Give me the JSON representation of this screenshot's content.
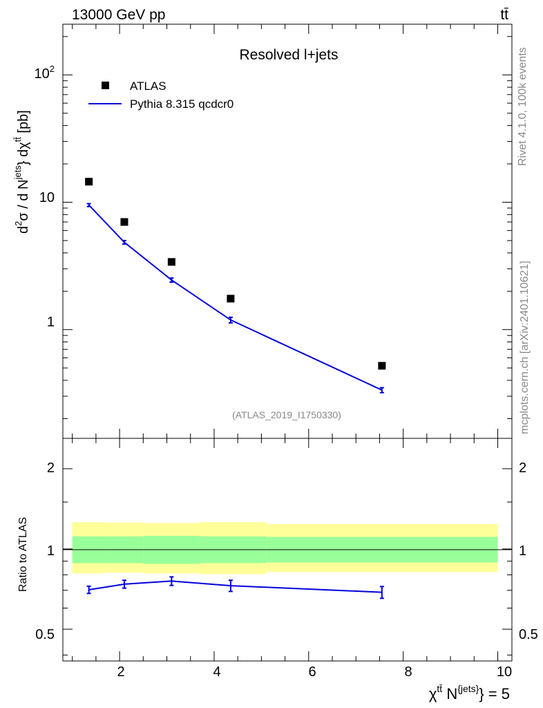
{
  "header": {
    "energy": "13000 GeV pp",
    "process": "tt̄",
    "analysis": "(ATLAS_2019_I1750330)",
    "side_rivet": "Rivet 4.1.0,  100k events",
    "side_source": "mcplots.cern.ch [arXiv:2401.10621]"
  },
  "chart_data": {
    "type": "line",
    "title": "Resolved l+jets",
    "xlabel": "χ^{tt̄} N^{jets} = 5",
    "ylabel": "d²σ / d N^{jets} d χ^{tt̄} [pb]",
    "ratio_ylabel": "Ratio to ATLAS",
    "xlim": [
      0.8,
      10.3
    ],
    "ylim": [
      0.14,
      250
    ],
    "ratio_ylim": [
      0.38,
      2.6
    ],
    "x_ticks": [
      "2",
      "4",
      "6",
      "8",
      "10"
    ],
    "y_ticks": [
      "1",
      "10",
      "10²"
    ],
    "ratio_ticks": [
      "0.5",
      "1",
      "2"
    ],
    "bins": [
      [
        1.0,
        1.7
      ],
      [
        1.7,
        2.5
      ],
      [
        2.5,
        3.7
      ],
      [
        3.7,
        5.1
      ],
      [
        5.1,
        10.0
      ]
    ],
    "x": [
      1.35,
      2.1,
      3.1,
      4.35,
      7.55
    ],
    "series": [
      {
        "name": "ATLAS",
        "style": "markers",
        "color": "#000000",
        "values": [
          14.5,
          7.0,
          3.4,
          1.75,
          0.52
        ],
        "stat_band": [
          [
            0.885,
            1.115
          ],
          [
            0.885,
            1.115
          ],
          [
            0.88,
            1.12
          ],
          [
            0.885,
            1.115
          ],
          [
            0.89,
            1.11
          ]
        ],
        "total_band": [
          [
            0.81,
            1.26
          ],
          [
            0.815,
            1.255
          ],
          [
            0.81,
            1.25
          ],
          [
            0.805,
            1.26
          ],
          [
            0.82,
            1.24
          ]
        ]
      },
      {
        "name": "Pythia 8.315 qcdcr0",
        "style": "line",
        "color": "#0000dd",
        "values": [
          9.5,
          4.85,
          2.45,
          1.19,
          0.335
        ],
        "errors": [
          0.25,
          0.15,
          0.09,
          0.06,
          0.015
        ],
        "ratio": [
          0.703,
          0.738,
          0.758,
          0.728,
          0.688
        ],
        "ratio_errors": [
          0.022,
          0.025,
          0.028,
          0.035,
          0.035
        ]
      }
    ],
    "band_colors": {
      "stat": "#99ff99",
      "total": "#ffff99"
    }
  }
}
